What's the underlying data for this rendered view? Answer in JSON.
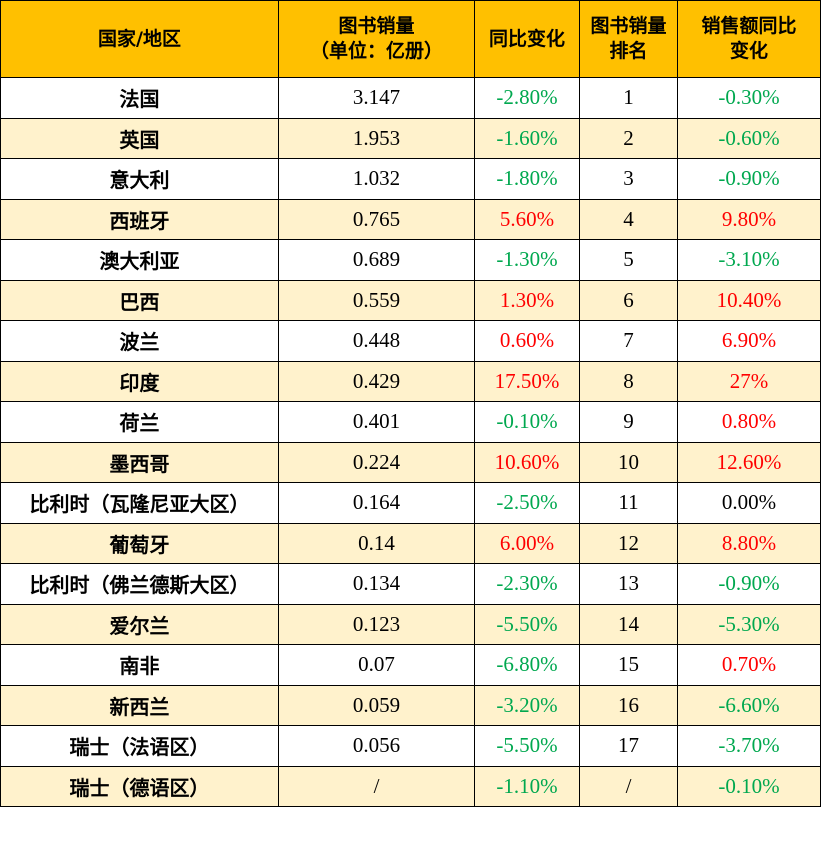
{
  "colors": {
    "header_bg": "#FFC000",
    "alt_row_bg": "#FFF2CC",
    "increase": "#FF0000",
    "decrease": "#00A84F"
  },
  "headers": [
    [
      "国家/地区"
    ],
    [
      "图书销量",
      "（单位：亿册）"
    ],
    [
      "同比变化"
    ],
    [
      "图书销量",
      "排名"
    ],
    [
      "销售额同比",
      "变化"
    ]
  ],
  "rows": [
    {
      "country": "法国",
      "sales": "3.147",
      "yoy": "-2.80%",
      "rank": "1",
      "revenue_yoy": "-0.30%"
    },
    {
      "country": "英国",
      "sales": "1.953",
      "yoy": "-1.60%",
      "rank": "2",
      "revenue_yoy": "-0.60%"
    },
    {
      "country": "意大利",
      "sales": "1.032",
      "yoy": "-1.80%",
      "rank": "3",
      "revenue_yoy": "-0.90%"
    },
    {
      "country": "西班牙",
      "sales": "0.765",
      "yoy": "5.60%",
      "rank": "4",
      "revenue_yoy": "9.80%"
    },
    {
      "country": "澳大利亚",
      "sales": "0.689",
      "yoy": "-1.30%",
      "rank": "5",
      "revenue_yoy": "-3.10%"
    },
    {
      "country": "巴西",
      "sales": "0.559",
      "yoy": "1.30%",
      "rank": "6",
      "revenue_yoy": "10.40%"
    },
    {
      "country": "波兰",
      "sales": "0.448",
      "yoy": "0.60%",
      "rank": "7",
      "revenue_yoy": "6.90%"
    },
    {
      "country": "印度",
      "sales": "0.429",
      "yoy": "17.50%",
      "rank": "8",
      "revenue_yoy": "27%"
    },
    {
      "country": "荷兰",
      "sales": "0.401",
      "yoy": "-0.10%",
      "rank": "9",
      "revenue_yoy": "0.80%"
    },
    {
      "country": "墨西哥",
      "sales": "0.224",
      "yoy": "10.60%",
      "rank": "10",
      "revenue_yoy": "12.60%"
    },
    {
      "country": "比利时（瓦隆尼亚大区）",
      "sales": "0.164",
      "yoy": "-2.50%",
      "rank": "11",
      "revenue_yoy": "0.00%"
    },
    {
      "country": "葡萄牙",
      "sales": "0.14",
      "yoy": "6.00%",
      "rank": "12",
      "revenue_yoy": "8.80%"
    },
    {
      "country": "比利时（佛兰德斯大区）",
      "sales": "0.134",
      "yoy": "-2.30%",
      "rank": "13",
      "revenue_yoy": "-0.90%"
    },
    {
      "country": "爱尔兰",
      "sales": "0.123",
      "yoy": "-5.50%",
      "rank": "14",
      "revenue_yoy": "-5.30%"
    },
    {
      "country": "南非",
      "sales": "0.07",
      "yoy": "-6.80%",
      "rank": "15",
      "revenue_yoy": "0.70%"
    },
    {
      "country": "新西兰",
      "sales": "0.059",
      "yoy": "-3.20%",
      "rank": "16",
      "revenue_yoy": "-6.60%"
    },
    {
      "country": "瑞士（法语区）",
      "sales": "0.056",
      "yoy": "-5.50%",
      "rank": "17",
      "revenue_yoy": "-3.70%"
    },
    {
      "country": "瑞士（德语区）",
      "sales": "/",
      "yoy": "-1.10%",
      "rank": "/",
      "revenue_yoy": "-0.10%"
    }
  ]
}
